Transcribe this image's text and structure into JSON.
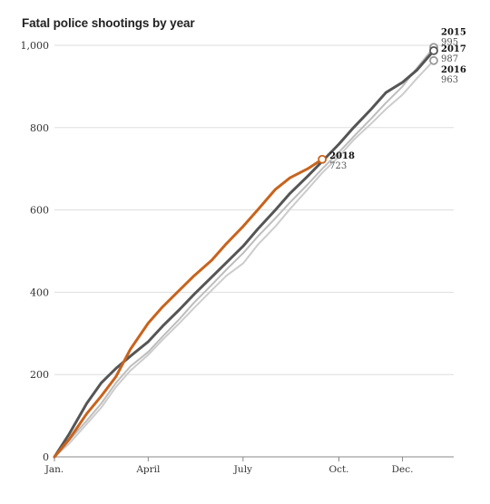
{
  "chart_data": {
    "type": "line",
    "title": "Fatal police shootings by year",
    "xlabel": "",
    "ylabel": "",
    "x_ticks": [
      "Jan.",
      "April",
      "July",
      "Oct.",
      "Dec."
    ],
    "x_tick_days": [
      1,
      91,
      182,
      274,
      335
    ],
    "xlim": [
      1,
      365
    ],
    "y_ticks": [
      "0",
      "200",
      "400",
      "600",
      "800",
      "1,000"
    ],
    "y_tick_values": [
      0,
      200,
      400,
      600,
      800,
      1000
    ],
    "ylim": [
      0,
      1000
    ],
    "grid": true,
    "series": [
      {
        "name": "2015",
        "color": "#bdbdbd",
        "x": [
          1,
          15,
          32,
          46,
          60,
          74,
          91,
          105,
          121,
          135,
          152,
          166,
          182,
          196,
          213,
          227,
          244,
          258,
          274,
          288,
          305,
          319,
          335,
          349,
          365
        ],
        "y": [
          0,
          40,
          88,
          130,
          180,
          220,
          255,
          293,
          335,
          375,
          418,
          455,
          495,
          535,
          580,
          618,
          662,
          700,
          740,
          778,
          822,
          860,
          900,
          945,
          995
        ],
        "end_value": "995"
      },
      {
        "name": "2016",
        "color": "#cccccc",
        "x": [
          1,
          15,
          32,
          46,
          60,
          74,
          91,
          105,
          121,
          135,
          152,
          166,
          182,
          196,
          213,
          227,
          244,
          258,
          274,
          288,
          305,
          319,
          335,
          349,
          365
        ],
        "y": [
          0,
          32,
          80,
          120,
          170,
          210,
          248,
          285,
          325,
          362,
          405,
          440,
          470,
          515,
          560,
          602,
          650,
          690,
          730,
          770,
          810,
          845,
          880,
          920,
          963
        ],
        "end_value": "963"
      },
      {
        "name": "2017",
        "color": "#555555",
        "x": [
          1,
          15,
          32,
          46,
          60,
          74,
          91,
          105,
          121,
          135,
          152,
          166,
          182,
          196,
          213,
          227,
          244,
          258,
          274,
          288,
          305,
          319,
          335,
          349,
          365
        ],
        "y": [
          0,
          55,
          130,
          180,
          215,
          245,
          280,
          318,
          358,
          395,
          437,
          472,
          512,
          553,
          600,
          640,
          682,
          718,
          760,
          800,
          845,
          885,
          910,
          940,
          987
        ],
        "end_value": "987"
      },
      {
        "name": "2018",
        "color": "#c8631d",
        "x": [
          1,
          15,
          32,
          46,
          60,
          74,
          91,
          105,
          121,
          135,
          152,
          166,
          182,
          196,
          213,
          227,
          244,
          258
        ],
        "y": [
          0,
          42,
          105,
          148,
          195,
          262,
          325,
          365,
          405,
          440,
          478,
          518,
          560,
          600,
          650,
          678,
          700,
          723
        ],
        "end_value": "723"
      }
    ]
  }
}
